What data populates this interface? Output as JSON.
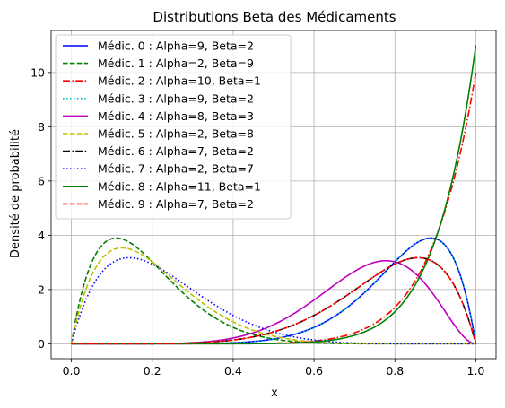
{
  "chart_data": {
    "type": "line",
    "title": "Distributions Beta des Médicaments",
    "xlabel": "x",
    "ylabel": "Densité de probabilité",
    "xlim": [
      -0.05,
      1.05
    ],
    "ylim": [
      -0.55,
      11.55
    ],
    "xticks": [
      "0.0",
      "0.2",
      "0.4",
      "0.6",
      "0.8",
      "1.0"
    ],
    "xtick_values": [
      0,
      0.2,
      0.4,
      0.6,
      0.8,
      1.0
    ],
    "yticks": [
      "0",
      "2",
      "4",
      "6",
      "8",
      "10"
    ],
    "ytick_values": [
      0,
      2,
      4,
      6,
      8,
      10
    ],
    "grid": true,
    "legend_position": "top-left",
    "series": [
      {
        "name": "Médic. 0 : Alpha=9, Beta=2",
        "alpha": 9,
        "beta": 2,
        "color": "#0000ff",
        "style": "solid"
      },
      {
        "name": "Médic. 1 : Alpha=2, Beta=9",
        "alpha": 2,
        "beta": 9,
        "color": "#008000",
        "style": "dashed"
      },
      {
        "name": "Médic. 2 : Alpha=10, Beta=1",
        "alpha": 10,
        "beta": 1,
        "color": "#ff0000",
        "style": "dashdot"
      },
      {
        "name": "Médic. 3 : Alpha=9, Beta=2",
        "alpha": 9,
        "beta": 2,
        "color": "#00bfbf",
        "style": "dotted"
      },
      {
        "name": "Médic. 4 : Alpha=8, Beta=3",
        "alpha": 8,
        "beta": 3,
        "color": "#bf00bf",
        "style": "solid"
      },
      {
        "name": "Médic. 5 : Alpha=2, Beta=8",
        "alpha": 2,
        "beta": 8,
        "color": "#bfbf00",
        "style": "dashed"
      },
      {
        "name": "Médic. 6 : Alpha=7, Beta=2",
        "alpha": 7,
        "beta": 2,
        "color": "#000000",
        "style": "dashdot"
      },
      {
        "name": "Médic. 7 : Alpha=2, Beta=7",
        "alpha": 2,
        "beta": 7,
        "color": "#0000ff",
        "style": "dotted"
      },
      {
        "name": "Médic. 8 : Alpha=11, Beta=1",
        "alpha": 11,
        "beta": 1,
        "color": "#008000",
        "style": "solid"
      },
      {
        "name": "Médic. 9 : Alpha=7, Beta=2",
        "alpha": 7,
        "beta": 2,
        "color": "#ff0000",
        "style": "dashed"
      }
    ]
  }
}
